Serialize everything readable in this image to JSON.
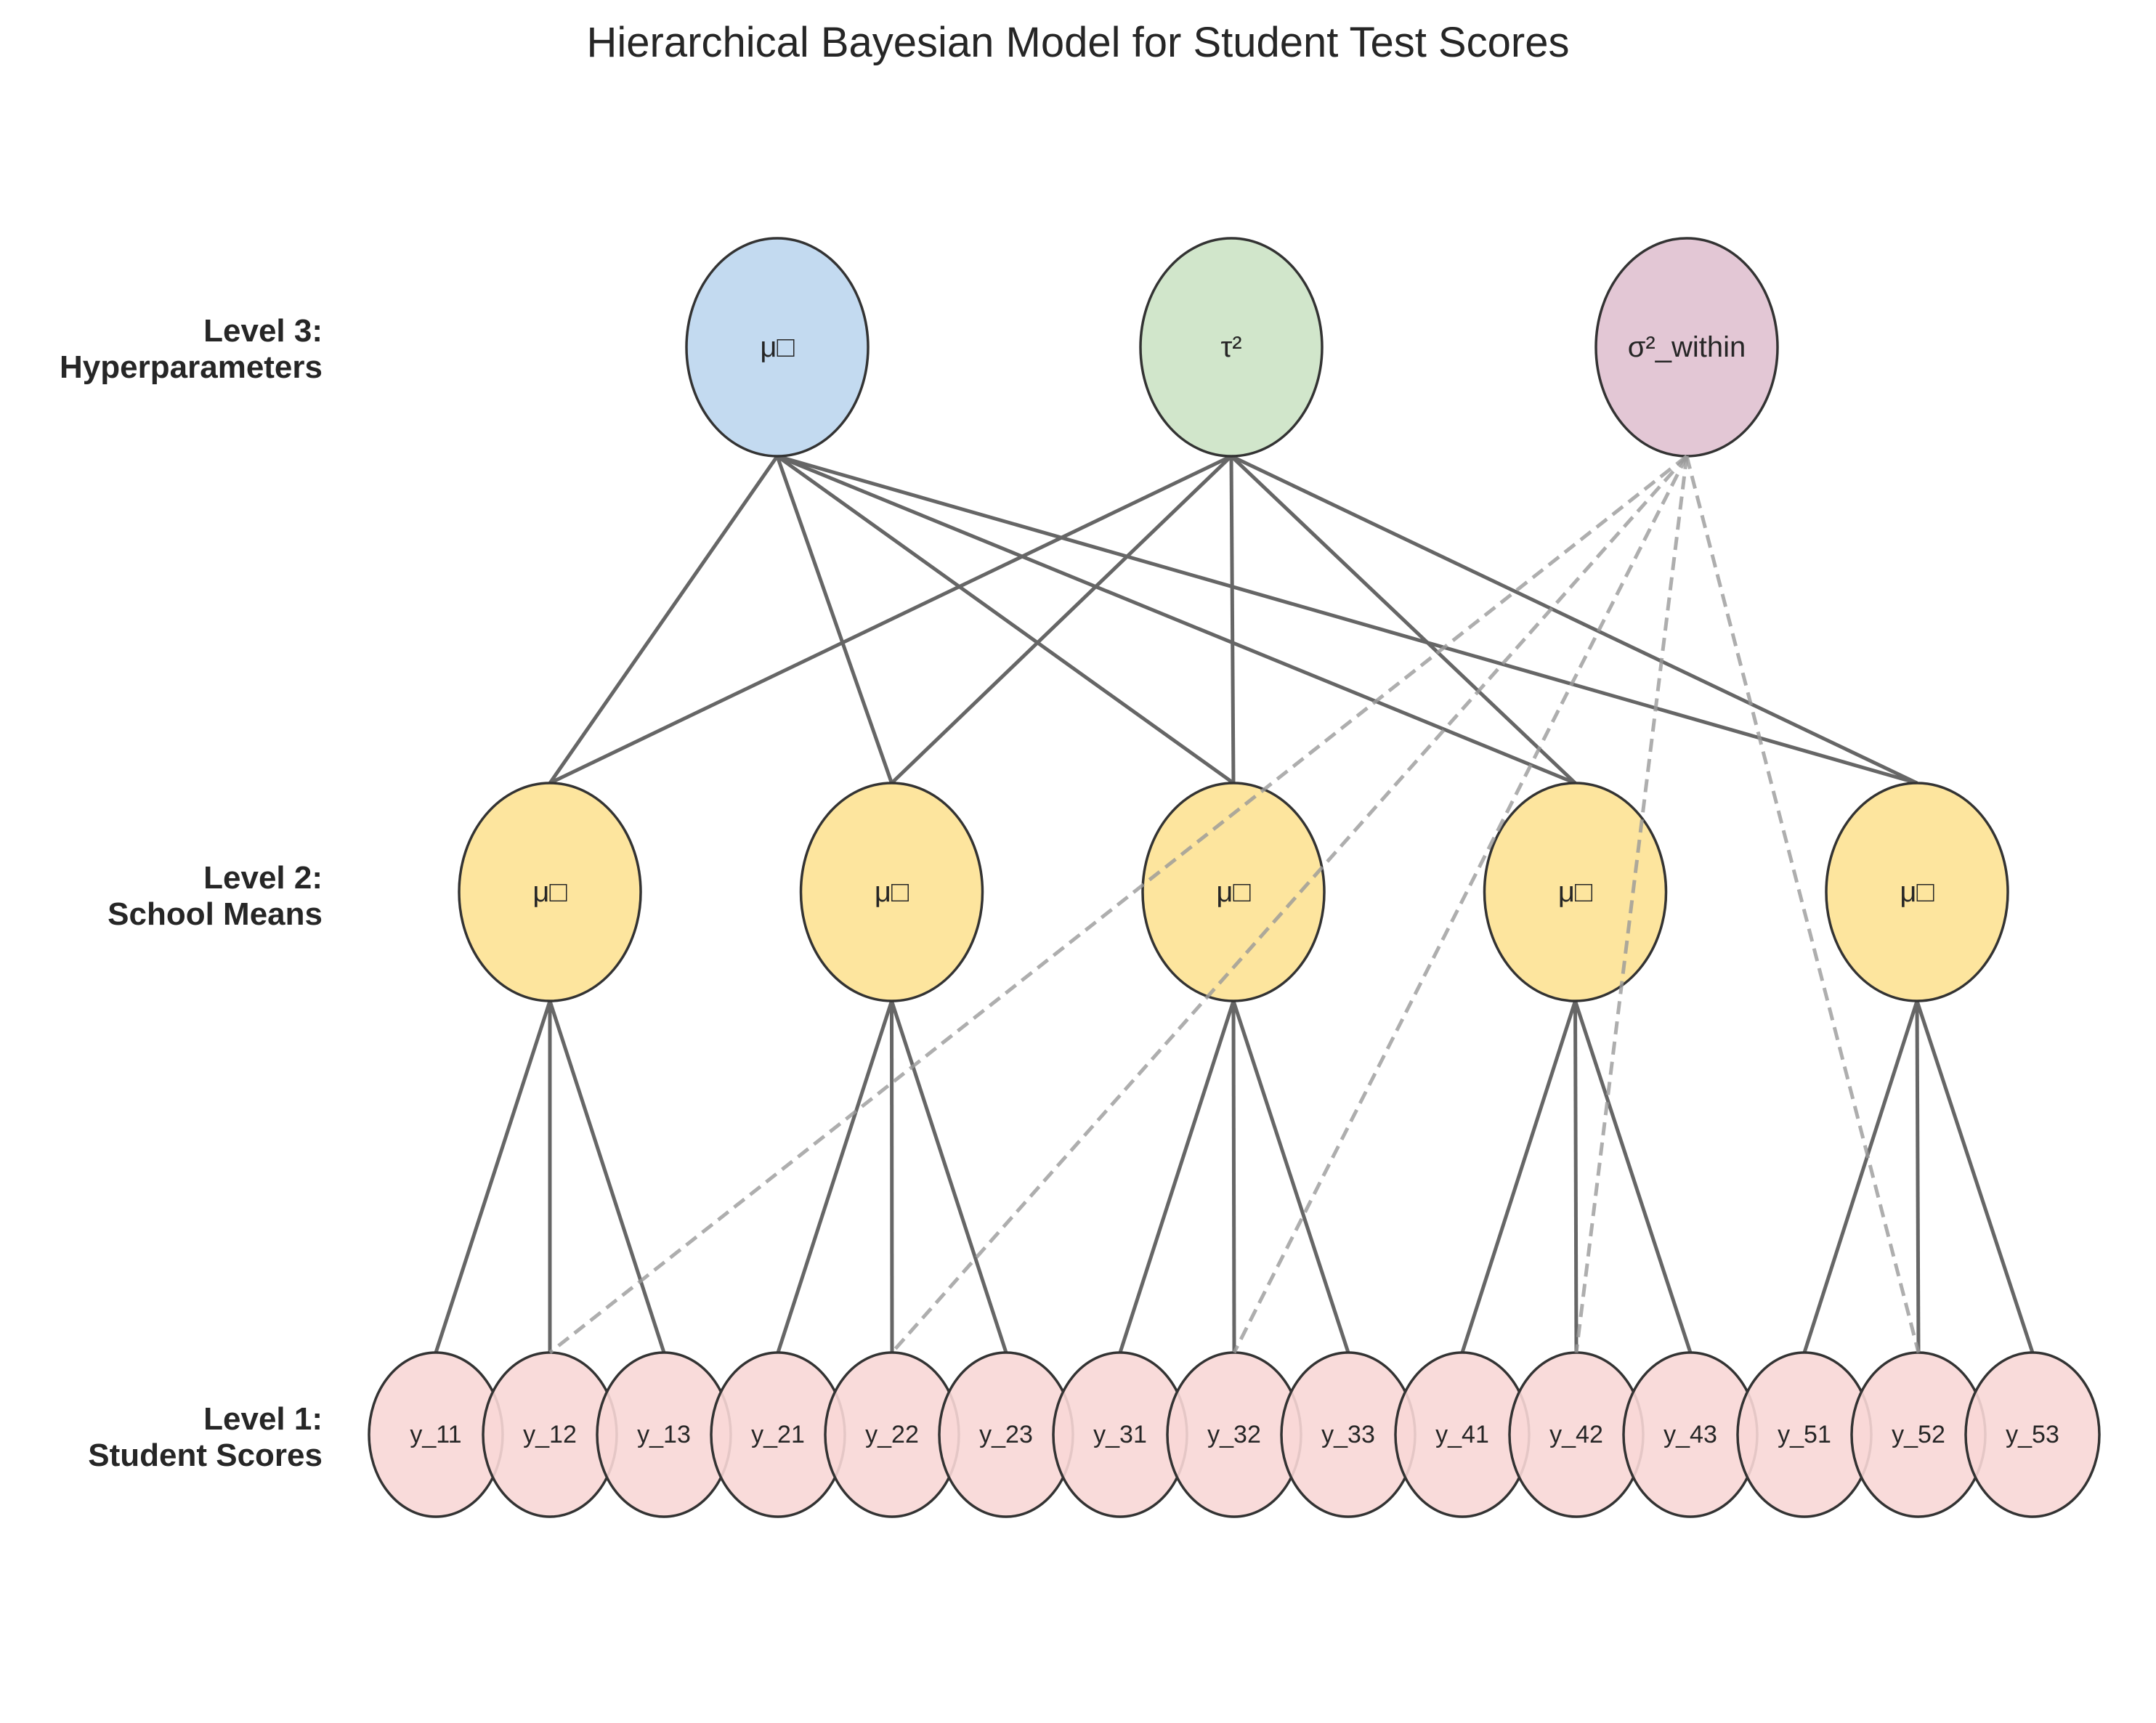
{
  "title": "Hierarchical Bayesian Model for Student Test Scores",
  "levels": [
    {
      "line1": "Level 3:",
      "line2": "Hyperparameters"
    },
    {
      "line1": "Level 2:",
      "line2": "School Means"
    },
    {
      "line1": "Level 1:",
      "line2": "Student Scores"
    }
  ],
  "hyperparameters": [
    {
      "id": "mu0",
      "label": "μ□",
      "color": "#bcd6ee"
    },
    {
      "id": "tau2",
      "label": "τ²",
      "color": "#cce3c5"
    },
    {
      "id": "sigma2",
      "label": "σ²_within",
      "color": "#e0c1d0"
    }
  ],
  "school_means": [
    {
      "id": "mu1",
      "label": "μ□"
    },
    {
      "id": "mu2",
      "label": "μ□"
    },
    {
      "id": "mu3",
      "label": "μ□"
    },
    {
      "id": "mu4",
      "label": "μ□"
    },
    {
      "id": "mu5",
      "label": "μ□"
    }
  ],
  "school_color": "#fde293",
  "student_scores": [
    {
      "label": "y_11",
      "school": 0
    },
    {
      "label": "y_12",
      "school": 0
    },
    {
      "label": "y_13",
      "school": 0
    },
    {
      "label": "y_21",
      "school": 1
    },
    {
      "label": "y_22",
      "school": 1
    },
    {
      "label": "y_23",
      "school": 1
    },
    {
      "label": "y_31",
      "school": 2
    },
    {
      "label": "y_32",
      "school": 2
    },
    {
      "label": "y_33",
      "school": 2
    },
    {
      "label": "y_41",
      "school": 3
    },
    {
      "label": "y_42",
      "school": 3
    },
    {
      "label": "y_43",
      "school": 3
    },
    {
      "label": "y_51",
      "school": 4
    },
    {
      "label": "y_52",
      "school": 4
    },
    {
      "label": "y_53",
      "school": 4
    }
  ],
  "student_color": "#f8d7d6",
  "edges": {
    "hyper_to_school": [
      0,
      1
    ],
    "within_variance_to_students": [
      1,
      4,
      7,
      10,
      13
    ]
  }
}
